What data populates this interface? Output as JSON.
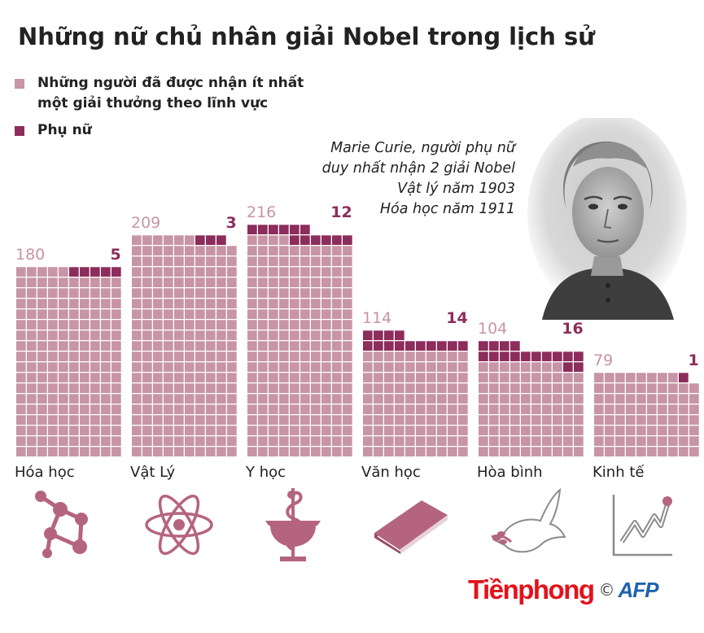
{
  "title": "Những nữ chủ nhân giải Nobel trong lịch sử",
  "legend": {
    "all_line1": "Những người đã được nhận ít nhất",
    "all_line2": "một giải thưởng theo lĩnh vực",
    "women": "Phụ nữ",
    "all_color": "#c795a5",
    "women_color": "#8c2d5c"
  },
  "caption": {
    "line1": "Marie Curie, người phụ nữ",
    "line2": "duy nhất nhận 2 giải Nobel",
    "line3": "Vật lý năm 1903",
    "line4": "Hóa học năm 1911"
  },
  "chart_data": {
    "type": "bar",
    "title": "Những nữ chủ nhân giải Nobel trong lịch sử",
    "categories": [
      "Hóa học",
      "Vật Lý",
      "Y học",
      "Văn học",
      "Hòa bình",
      "Kinh tế"
    ],
    "series": [
      {
        "name": "Những người đã được nhận ít nhất một giải thưởng theo lĩnh vực",
        "values": [
          180,
          209,
          216,
          114,
          104,
          79
        ]
      },
      {
        "name": "Phụ nữ",
        "values": [
          5,
          3,
          12,
          14,
          16,
          1
        ]
      }
    ],
    "icons": [
      "molecule-icon",
      "atom-icon",
      "caduceus-icon",
      "book-icon",
      "dove-icon",
      "growth-chart-icon"
    ]
  },
  "brand": {
    "name": "Tiềnphong",
    "copyright": "©",
    "agency": "AFP",
    "name_color": "#e3121b",
    "agency_color": "#1d62ad"
  }
}
